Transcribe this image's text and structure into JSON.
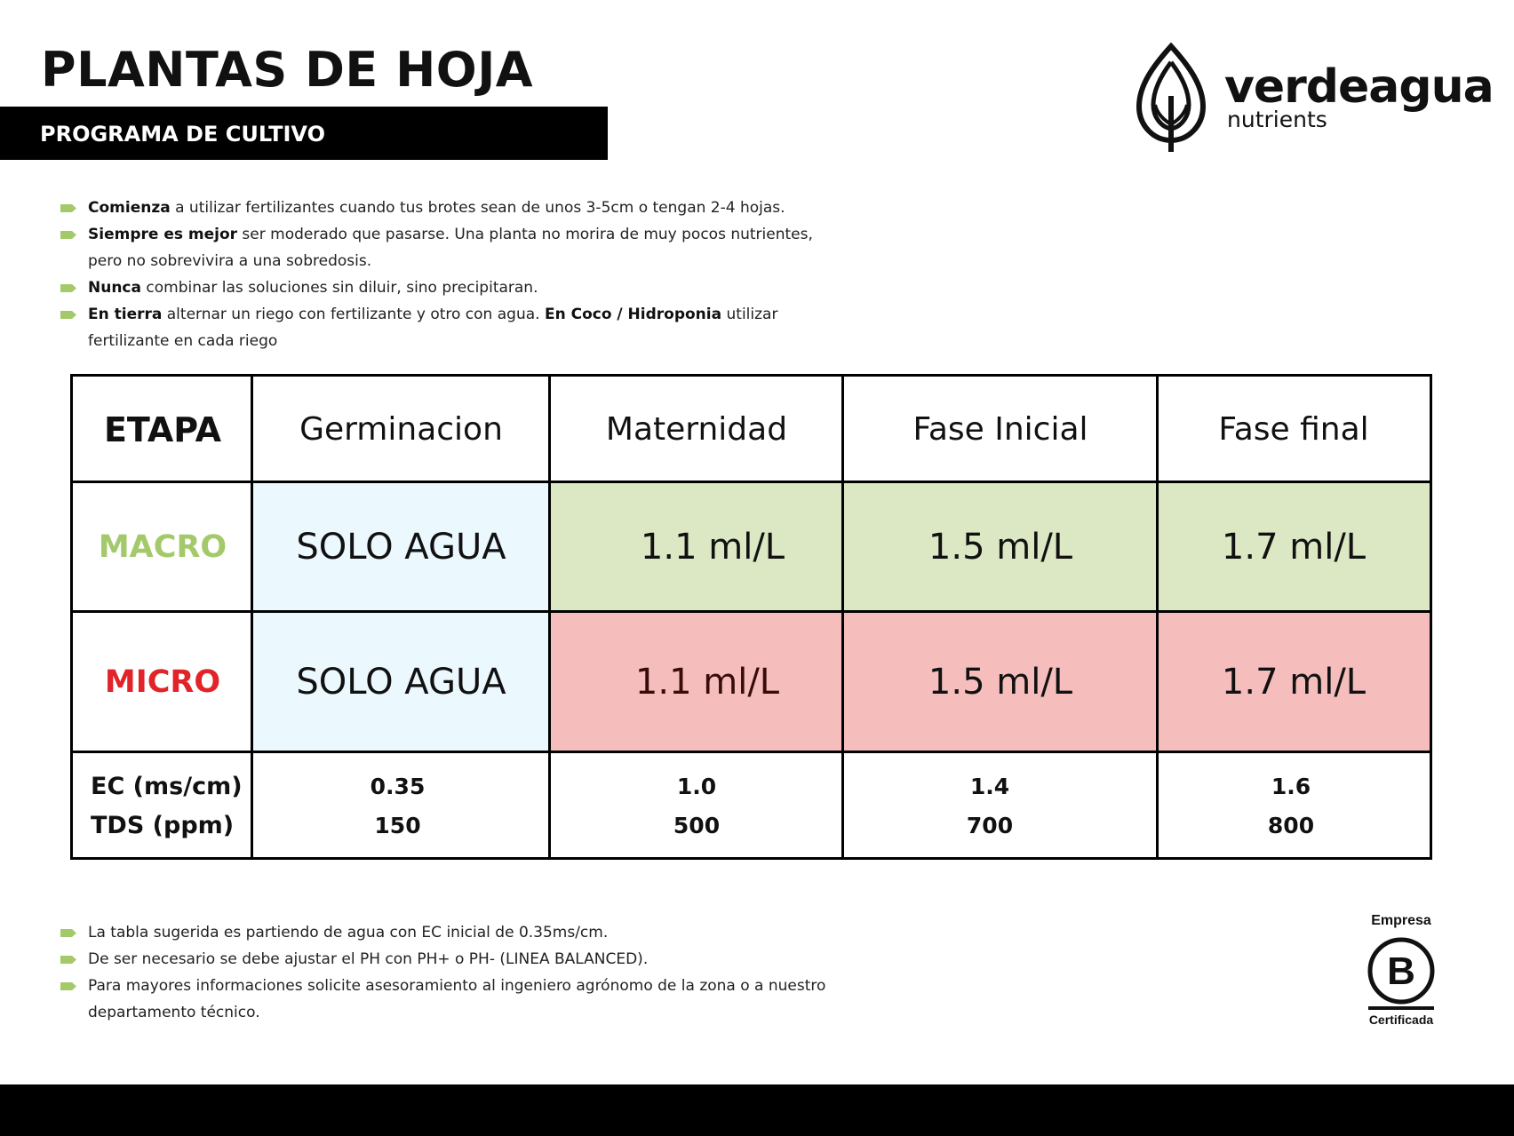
{
  "header": {
    "title": "PLANTAS DE HOJA",
    "subtitle": "PROGRAMA DE CULTIVO"
  },
  "brand": {
    "name": "verdeagua",
    "tagline": "nutrients"
  },
  "notes_top": [
    {
      "bold": "Comienza",
      "text": " a utilizar fertilizantes cuando tus brotes sean de unos 3-5cm o tengan 2-4 hojas."
    },
    {
      "bold": "Siempre es mejor",
      "text": " ser moderado que pasarse. Una planta no morira de muy pocos nutrientes, pero no sobrevivira a una sobredosis."
    },
    {
      "bold": "Nunca",
      "text": " combinar las soluciones sin diluir, sino precipitaran."
    },
    {
      "bold": "En tierra",
      "text": " alternar un riego con fertilizante y otro con agua. ",
      "bold2": "En Coco / Hidroponia",
      "text2": " utilizar fertilizante en cada riego"
    }
  ],
  "table": {
    "header_label": "ETAPA",
    "stages": [
      "Germinacion",
      "Maternidad",
      "Fase Inicial",
      "Fase final"
    ],
    "macro": {
      "label": "MACRO",
      "values": [
        "SOLO AGUA",
        "1.1 ml/L",
        "1.5 ml/L",
        "1.7 ml/L"
      ]
    },
    "micro": {
      "label": "MICRO",
      "values": [
        "SOLO AGUA",
        "1.1 ml/L",
        "1.5 ml/L",
        "1.7 ml/L"
      ]
    },
    "ec": {
      "label": "EC (ms/cm)",
      "values": [
        "0.35",
        "1.0",
        "1.4",
        "1.6"
      ]
    },
    "tds": {
      "label": "TDS (ppm)",
      "values": [
        "150",
        "500",
        "700",
        "800"
      ]
    }
  },
  "notes_bottom": [
    "La tabla sugerida es partiendo de agua con EC inicial de 0.35ms/cm.",
    "De ser necesario se debe ajustar el PH con PH+ o PH- (LINEA BALANCED).",
    "Para mayores informaciones solicite asesoramiento al ingeniero agrónomo de la zona o a  nuestro departamento técnico."
  ],
  "certification": {
    "top": "Empresa",
    "letter": "B",
    "bottom": "Certificada"
  },
  "colors": {
    "macro_label": "#a3c96b",
    "micro_label": "#e0242a",
    "germination_bg": "#ebf8fd",
    "macro_bg": "#dce8c4",
    "micro_bg": "#f5bebd",
    "bullet": "#a3c96b"
  }
}
